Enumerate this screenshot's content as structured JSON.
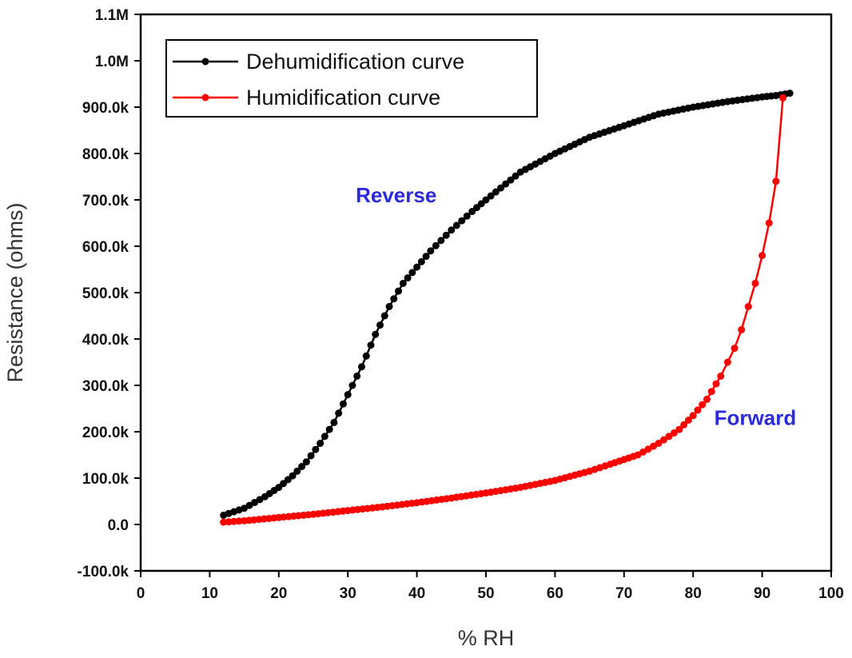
{
  "chart_data": {
    "type": "line",
    "title": "",
    "xlabel": "% RH",
    "ylabel": "Resistance (ohms)",
    "xlim": [
      0,
      100
    ],
    "ylim": [
      -100000,
      1100000
    ],
    "x_ticks": [
      0,
      10,
      20,
      30,
      40,
      50,
      60,
      70,
      80,
      90,
      100
    ],
    "x_tick_labels": [
      "0",
      "10",
      "20",
      "30",
      "40",
      "50",
      "60",
      "70",
      "80",
      "90",
      "100"
    ],
    "y_ticks": [
      -100000,
      0,
      100000,
      200000,
      300000,
      400000,
      500000,
      600000,
      700000,
      800000,
      900000,
      1000000,
      1100000
    ],
    "y_tick_labels": [
      "-100.0k",
      "0.0",
      "100.0k",
      "200.0k",
      "300.0k",
      "400.0k",
      "500.0k",
      "600.0k",
      "700.0k",
      "800.0k",
      "900.0k",
      "1.0M",
      "1.1M"
    ],
    "grid": false,
    "legend_position": "top-left",
    "series": [
      {
        "name": "Dehumidification curve",
        "color": "#000000",
        "x": [
          12,
          15,
          18,
          20,
          22,
          24,
          26,
          28,
          30,
          32,
          34,
          36,
          38,
          40,
          42,
          45,
          48,
          50,
          55,
          60,
          65,
          70,
          75,
          80,
          85,
          90,
          92,
          94
        ],
        "y": [
          20000,
          35000,
          60000,
          80000,
          105000,
          135000,
          175000,
          220000,
          280000,
          340000,
          410000,
          470000,
          520000,
          555000,
          590000,
          635000,
          675000,
          700000,
          760000,
          800000,
          835000,
          860000,
          885000,
          900000,
          912000,
          922000,
          925000,
          930000
        ]
      },
      {
        "name": "Humidification curve",
        "color": "#ff0000",
        "x": [
          12,
          15,
          20,
          25,
          30,
          35,
          40,
          45,
          50,
          55,
          60,
          65,
          68,
          70,
          72,
          75,
          78,
          80,
          82,
          84,
          85,
          86,
          87,
          88,
          89,
          90,
          91,
          92,
          93
        ],
        "y": [
          5000,
          8000,
          15000,
          22000,
          30000,
          38000,
          47000,
          57000,
          68000,
          80000,
          95000,
          115000,
          130000,
          140000,
          150000,
          175000,
          205000,
          235000,
          270000,
          320000,
          350000,
          380000,
          420000,
          470000,
          520000,
          580000,
          650000,
          740000,
          920000
        ]
      }
    ],
    "annotations": [
      {
        "text": "Reverse",
        "x": 37,
        "y": 695000,
        "color": "#2b2bdb"
      },
      {
        "text": "Forward",
        "x": 89,
        "y": 215000,
        "color": "#2b2bdb"
      }
    ]
  }
}
